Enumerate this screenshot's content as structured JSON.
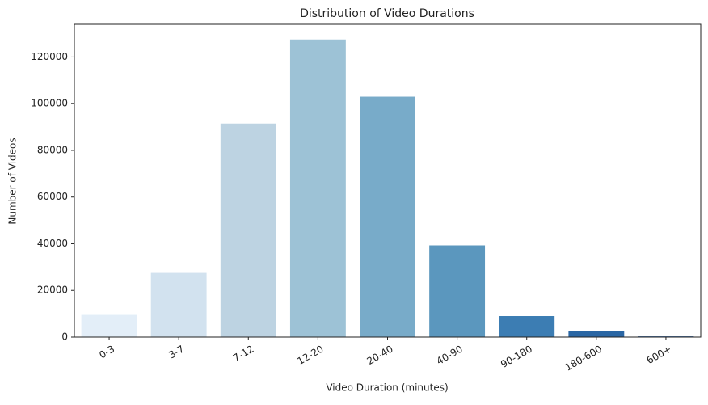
{
  "chart_data": {
    "type": "bar",
    "title": "Distribution of Video Durations",
    "x_label": "Video Duration (minutes)",
    "y_label": "Number of Videos",
    "categories": [
      "0-3",
      "3-7",
      "7-12",
      "12-20",
      "20-40",
      "40-90",
      "90-180",
      "180-600",
      "600+"
    ],
    "values": [
      9500,
      27500,
      91500,
      127500,
      103000,
      39300,
      9000,
      2500,
      300
    ],
    "colors": [
      "#e3eef8",
      "#d2e2ef",
      "#bdd3e2",
      "#9dc2d6",
      "#78abc9",
      "#5b97be",
      "#3c7db3",
      "#2a66a4",
      "#1b4f91"
    ],
    "ylim": [
      0,
      134000
    ],
    "yticks": [
      0,
      20000,
      40000,
      60000,
      80000,
      100000,
      120000
    ],
    "grid": false
  }
}
